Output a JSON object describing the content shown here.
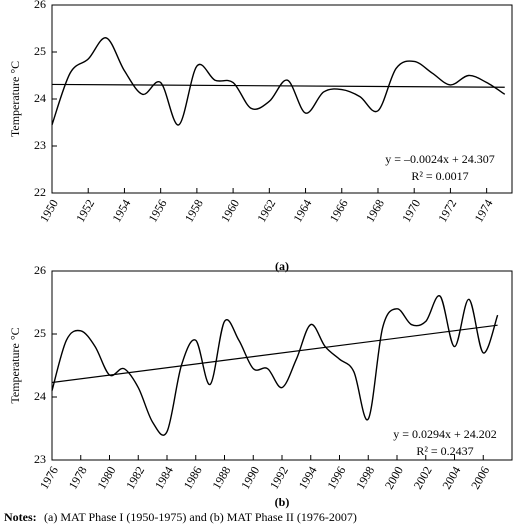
{
  "chart_data": [
    {
      "type": "line",
      "label": "(a)",
      "y_label": "Temperature °C",
      "x": [
        1950,
        1951,
        1952,
        1953,
        1954,
        1955,
        1956,
        1957,
        1958,
        1959,
        1960,
        1961,
        1962,
        1963,
        1964,
        1965,
        1966,
        1967,
        1968,
        1969,
        1970,
        1971,
        1972,
        1973,
        1974,
        1975
      ],
      "series": [
        {
          "color": "#000000",
          "values": [
            23.45,
            24.55,
            24.85,
            25.3,
            24.6,
            24.1,
            24.35,
            23.45,
            24.7,
            24.4,
            24.35,
            23.8,
            23.95,
            24.4,
            23.7,
            24.15,
            24.2,
            24.05,
            23.75,
            24.65,
            24.8,
            24.55,
            24.3,
            24.5,
            24.35,
            24.1
          ]
        }
      ],
      "trendline": {
        "x": [
          1950,
          1975
        ],
        "values": [
          24.31,
          24.25
        ]
      },
      "annotations": [
        "y = –0.0024x + 24.307",
        "R² = 0.0017"
      ],
      "xlim": [
        1950,
        1975.4
      ],
      "xticks": [
        1950,
        1952,
        1954,
        1956,
        1958,
        1960,
        1962,
        1964,
        1966,
        1968,
        1970,
        1972,
        1974
      ],
      "ylim": [
        22,
        26
      ],
      "yticks": [
        22,
        23,
        24,
        25,
        26
      ]
    },
    {
      "type": "line",
      "label": "(b)",
      "y_label": "Temperature °C",
      "x": [
        1976,
        1977,
        1978,
        1979,
        1980,
        1981,
        1982,
        1983,
        1984,
        1985,
        1986,
        1987,
        1988,
        1989,
        1990,
        1991,
        1992,
        1993,
        1994,
        1995,
        1996,
        1997,
        1998,
        1999,
        2000,
        2001,
        2002,
        2003,
        2004,
        2005,
        2006,
        2007
      ],
      "series": [
        {
          "color": "#000000",
          "values": [
            24.1,
            24.9,
            25.05,
            24.8,
            24.35,
            24.45,
            24.15,
            23.6,
            23.45,
            24.5,
            24.9,
            24.2,
            25.2,
            24.9,
            24.45,
            24.45,
            24.15,
            24.6,
            25.15,
            24.8,
            24.6,
            24.4,
            23.65,
            25.1,
            25.4,
            25.15,
            25.2,
            25.6,
            24.8,
            25.55,
            24.7,
            25.3
          ]
        }
      ],
      "trendline": {
        "x": [
          1976,
          2007
        ],
        "values": [
          24.23,
          25.14
        ]
      },
      "annotations": [
        "y = 0.0294x + 24.202",
        "R² = 0.2437"
      ],
      "xlim": [
        1976,
        2008
      ],
      "xticks": [
        1976,
        1978,
        1980,
        1982,
        1984,
        1986,
        1988,
        1990,
        1992,
        1994,
        1996,
        1998,
        2000,
        2002,
        2004,
        2006
      ],
      "ylim": [
        23,
        26
      ],
      "yticks": [
        23,
        24,
        25,
        26
      ]
    }
  ],
  "notes": {
    "label": "Notes:",
    "text": "(a) MAT Phase I (1950-1975) and (b) MAT Phase II (1976-2007)"
  }
}
